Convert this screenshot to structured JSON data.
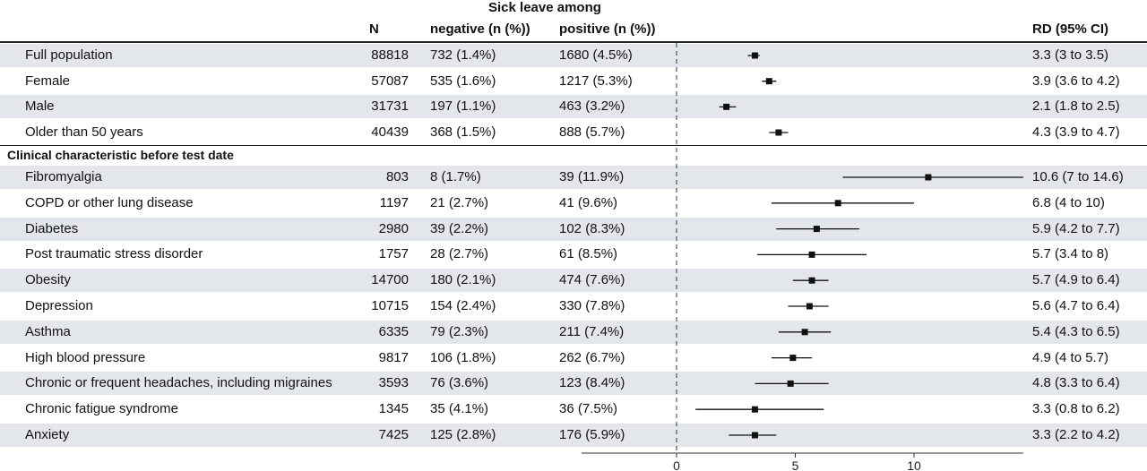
{
  "table": {
    "group_header": "Sick leave among",
    "columns": [
      "N",
      "negative (n (%))",
      "positive (n (%))",
      "RD (95% CI)"
    ],
    "section_label": "Clinical characteristic before test date"
  },
  "chart_data": {
    "type": "forest",
    "x_ticks": [
      0,
      5,
      10
    ],
    "xlim": [
      -4.0,
      14.6
    ],
    "reference_line": 0,
    "rows": [
      {
        "label": "Full population",
        "n": "88818",
        "negative": "732 (1.4%)",
        "positive": "1680 (4.5%)",
        "rd_text": "3.3 (3 to 3.5)",
        "estimate": 3.3,
        "lower": 3.0,
        "upper": 3.5
      },
      {
        "label": "Female",
        "n": "57087",
        "negative": "535 (1.6%)",
        "positive": "1217 (5.3%)",
        "rd_text": "3.9 (3.6 to 4.2)",
        "estimate": 3.9,
        "lower": 3.6,
        "upper": 4.2
      },
      {
        "label": "Male",
        "n": "31731",
        "negative": "197 (1.1%)",
        "positive": "463 (3.2%)",
        "rd_text": "2.1 (1.8 to 2.5)",
        "estimate": 2.1,
        "lower": 1.8,
        "upper": 2.5
      },
      {
        "label": "Older than 50 years",
        "n": "40439",
        "negative": "368 (1.5%)",
        "positive": "888 (5.7%)",
        "rd_text": "4.3 (3.9 to 4.7)",
        "estimate": 4.3,
        "lower": 3.9,
        "upper": 4.7
      },
      {
        "label": "Fibromyalgia",
        "n": "803",
        "negative": "8 (1.7%)",
        "positive": "39 (11.9%)",
        "rd_text": "10.6 (7 to 14.6)",
        "estimate": 10.6,
        "lower": 7.0,
        "upper": 14.6
      },
      {
        "label": "COPD or other lung disease",
        "n": "1197",
        "negative": "21 (2.7%)",
        "positive": "41 (9.6%)",
        "rd_text": "6.8 (4 to 10)",
        "estimate": 6.8,
        "lower": 4.0,
        "upper": 10.0
      },
      {
        "label": "Diabetes",
        "n": "2980",
        "negative": "39 (2.2%)",
        "positive": "102 (8.3%)",
        "rd_text": "5.9 (4.2 to 7.7)",
        "estimate": 5.9,
        "lower": 4.2,
        "upper": 7.7
      },
      {
        "label": "Post traumatic stress disorder",
        "n": "1757",
        "negative": "28 (2.7%)",
        "positive": "61 (8.5%)",
        "rd_text": "5.7 (3.4 to 8)",
        "estimate": 5.7,
        "lower": 3.4,
        "upper": 8.0
      },
      {
        "label": "Obesity",
        "n": "14700",
        "negative": "180 (2.1%)",
        "positive": "474 (7.6%)",
        "rd_text": "5.7 (4.9 to 6.4)",
        "estimate": 5.7,
        "lower": 4.9,
        "upper": 6.4
      },
      {
        "label": "Depression",
        "n": "10715",
        "negative": "154 (2.4%)",
        "positive": "330 (7.8%)",
        "rd_text": "5.6 (4.7 to 6.4)",
        "estimate": 5.6,
        "lower": 4.7,
        "upper": 6.4
      },
      {
        "label": "Asthma",
        "n": "6335",
        "negative": "79 (2.3%)",
        "positive": "211 (7.4%)",
        "rd_text": "5.4 (4.3 to 6.5)",
        "estimate": 5.4,
        "lower": 4.3,
        "upper": 6.5
      },
      {
        "label": "High blood pressure",
        "n": "9817",
        "negative": "106 (1.8%)",
        "positive": "262 (6.7%)",
        "rd_text": "4.9 (4 to 5.7)",
        "estimate": 4.9,
        "lower": 4.0,
        "upper": 5.7
      },
      {
        "label": "Chronic or frequent headaches, including migraines",
        "n": "3593",
        "negative": "76 (3.6%)",
        "positive": "123 (8.4%)",
        "rd_text": "4.8 (3.3 to 6.4)",
        "estimate": 4.8,
        "lower": 3.3,
        "upper": 6.4
      },
      {
        "label": "Chronic fatigue syndrome",
        "n": "1345",
        "negative": "35 (4.1%)",
        "positive": "36 (7.5%)",
        "rd_text": "3.3 (0.8 to 6.2)",
        "estimate": 3.3,
        "lower": 0.8,
        "upper": 6.2
      },
      {
        "label": "Anxiety",
        "n": "7425",
        "negative": "125 (2.8%)",
        "positive": "176 (5.9%)",
        "rd_text": "3.3 (2.2 to 4.2)",
        "estimate": 3.3,
        "lower": 2.2,
        "upper": 4.2
      }
    ],
    "colors": {
      "band": "#e3e6ea",
      "ink": "#111111"
    }
  }
}
